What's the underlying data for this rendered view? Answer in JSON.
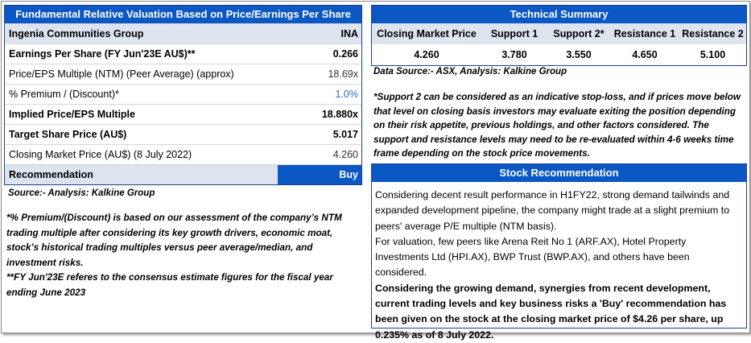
{
  "colors": {
    "header_blue": "#0b57c4",
    "shade": "#dde3ef",
    "premium_blue": "#2f6cc0"
  },
  "valuation": {
    "title": "Fundamental Relative Valuation Based on Price/Earnings Per Share",
    "rows": [
      {
        "label": "Ingenia Communities Group",
        "value": "INA"
      },
      {
        "label": "Earnings Per Share (FY Jun'23E AU$)**",
        "value": "0.266"
      },
      {
        "label": "Price/EPS Multiple (NTM) (Peer Average) (approx)",
        "value": "18.69x"
      },
      {
        "label": "% Premium / (Discount)*",
        "value": "1.0%"
      },
      {
        "label": "Implied Price/EPS Multiple",
        "value": "18.880x"
      },
      {
        "label": "Target Share Price (AU$)",
        "value": "5.017"
      },
      {
        "label": "Closing Market Price (AU$) (8 July 2022)",
        "value": "4.260"
      },
      {
        "label": "Recommendation",
        "value": "Buy"
      }
    ],
    "source": "Source:- Analysis: Kalkine Group"
  },
  "notes": {
    "premium_note": "*% Premium/(Discount) is based on our assessment of the company’s NTM trading multiple after considering its key growth drivers, economic moat, stock’s historical trading multiples versus peer average/median, and investment risks.",
    "fy_note": "**FY Jun'23E referes to the consensus estimate figures for the fiscal year ending June 2023"
  },
  "technical": {
    "title": "Technical Summary",
    "headers": [
      "Closing Market Price",
      "Support 1",
      "Support 2*",
      "Resistance 1",
      "Resistance 2"
    ],
    "values": [
      "4.260",
      "3.780",
      "3.550",
      "4.650",
      "5.100"
    ],
    "source": "Data Source:- ASX, Analysis: Kalkine Group",
    "disclaimer": "*Support 2 can be considered as an indicative stop-loss, and if prices move below that level on closing basis investors may evaluate exiting the position depending on their risk appetite, previous holdings, and other factors considered. The support and resistance levels may need to be re-evaluated within 4-6 weeks time frame depending on the stock price movements."
  },
  "recommendation": {
    "title": "Stock Recommendation",
    "para1": "Considering decent result performance in H1FY22, strong demand tailwinds and expanded development pipeline, the company might trade at a slight premium to peers' average P/E multiple (NTM basis).",
    "para2": "For valuation, few peers like Arena Reit No 1 (ARF.AX), Hotel Property Investments Ltd (HPI.AX), BWP Trust (BWP.AX), and others have been considered.",
    "para3": "Considering the growing demand, synergies from recent development, current trading levels and key business risks a 'Buy' recommendation has been given on the stock at the closing market price of $4.26 per share, up 0.235% as of 8 July 2022."
  }
}
